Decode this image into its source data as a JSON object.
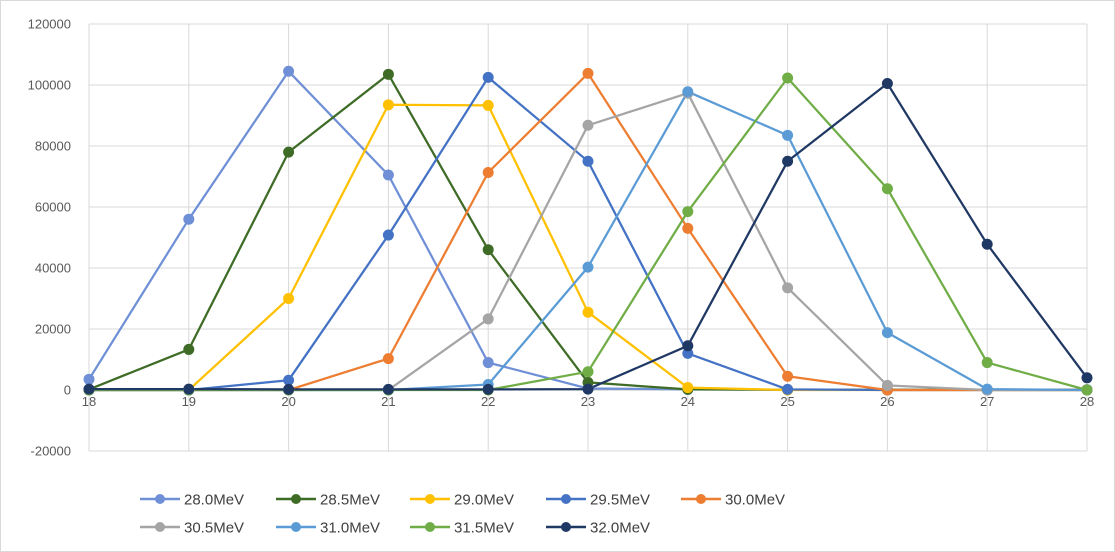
{
  "chart_data": {
    "type": "line",
    "x": [
      18,
      19,
      20,
      21,
      22,
      23,
      24,
      25,
      26,
      27,
      28
    ],
    "xlim": [
      18,
      28
    ],
    "ylim": [
      -20000,
      120000
    ],
    "y_ticks": [
      -20000,
      0,
      20000,
      40000,
      60000,
      80000,
      100000,
      120000
    ],
    "x_ticks": [
      18,
      19,
      20,
      21,
      22,
      23,
      24,
      25,
      26,
      27,
      28
    ],
    "grid": "vertical and horizontal major gridlines",
    "legend_position": "bottom",
    "title": "",
    "xlabel": "",
    "ylabel": "",
    "series": [
      {
        "name": "28.0MeV",
        "color": "#6F8FD6",
        "values": [
          3500,
          56000,
          104500,
          70500,
          9000,
          500,
          200,
          100,
          100,
          100,
          100
        ]
      },
      {
        "name": "28.5MeV",
        "color": "#3E6B26",
        "values": [
          200,
          13300,
          78000,
          103500,
          46000,
          2500,
          200,
          100,
          100,
          100,
          100
        ]
      },
      {
        "name": "29.0MeV",
        "color": "#FFC000",
        "values": [
          0,
          0,
          30000,
          93500,
          93300,
          25500,
          800,
          0,
          0,
          0,
          0
        ]
      },
      {
        "name": "29.5MeV",
        "color": "#4472C4",
        "values": [
          0,
          0,
          3200,
          50800,
          102500,
          75000,
          12000,
          200,
          0,
          0,
          0
        ]
      },
      {
        "name": "30.0MeV",
        "color": "#ED7D31",
        "values": [
          0,
          0,
          0,
          10300,
          71300,
          103800,
          53000,
          4500,
          0,
          0,
          0
        ]
      },
      {
        "name": "30.5MeV",
        "color": "#A5A5A5",
        "values": [
          0,
          0,
          0,
          0,
          23300,
          86800,
          97300,
          33500,
          1500,
          0,
          0
        ]
      },
      {
        "name": "31.0MeV",
        "color": "#5B9BD5",
        "values": [
          0,
          0,
          0,
          0,
          1800,
          40300,
          97800,
          83500,
          18800,
          300,
          0
        ]
      },
      {
        "name": "31.5MeV",
        "color": "#70AD47",
        "values": [
          0,
          0,
          0,
          0,
          0,
          6000,
          58500,
          102300,
          66000,
          9000,
          0
        ]
      },
      {
        "name": "32.0MeV",
        "color": "#203864",
        "values": [
          300,
          300,
          200,
          200,
          200,
          300,
          14500,
          75000,
          100500,
          47800,
          4000
        ]
      }
    ]
  }
}
